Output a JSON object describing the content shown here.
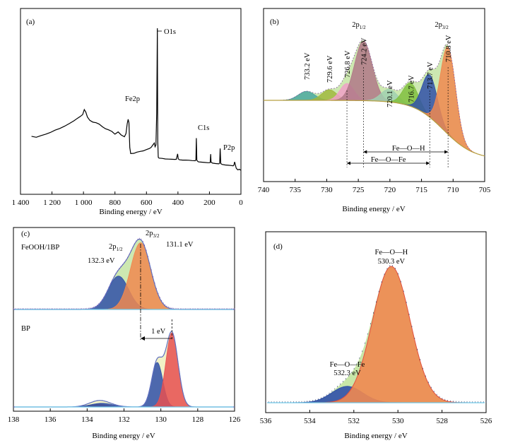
{
  "chart_data": [
    {
      "panel": "(a)",
      "type": "line",
      "xlabel": "Binding energy / eV",
      "xlim": [
        1400,
        0
      ],
      "xticks": [
        "1 400",
        "1 200",
        "1 000",
        "800",
        "600",
        "400",
        "200",
        "0"
      ],
      "xtick_values": [
        1400,
        1200,
        1000,
        800,
        600,
        400,
        200,
        0
      ],
      "annotations": [
        {
          "text": "O1s",
          "x": 531
        },
        {
          "text": "Fe2p",
          "x": 711
        },
        {
          "text": "C1s",
          "x": 285
        },
        {
          "text": "P2p",
          "x": 133
        }
      ],
      "series": [
        {
          "x": [
            1330,
            1300,
            1270,
            1240,
            1210,
            1180,
            1150,
            1120,
            1090,
            1060,
            1040,
            1020,
            1005,
            995,
            985,
            975,
            960,
            940,
            920,
            900,
            880,
            860,
            840,
            820,
            800,
            780,
            760,
            740,
            730,
            722,
            716,
            711,
            706,
            700,
            680,
            660,
            640,
            620,
            600,
            580,
            570,
            560,
            550,
            545,
            540,
            535,
            531,
            528,
            525,
            520,
            500,
            480,
            460,
            440,
            420,
            410,
            402,
            398,
            390,
            370,
            350,
            330,
            310,
            290,
            286,
            283,
            280,
            270,
            250,
            230,
            210,
            200,
            195,
            192,
            190,
            180,
            160,
            140,
            135,
            132,
            128,
            120,
            100,
            80,
            60,
            50,
            45,
            40,
            30,
            20,
            10,
            5,
            2
          ],
          "y": [
            0.243,
            0.236,
            0.248,
            0.258,
            0.27,
            0.286,
            0.298,
            0.314,
            0.332,
            0.352,
            0.368,
            0.382,
            0.395,
            0.43,
            0.412,
            0.378,
            0.355,
            0.342,
            0.338,
            0.328,
            0.31,
            0.296,
            0.288,
            0.277,
            0.258,
            0.274,
            0.252,
            0.24,
            0.262,
            0.332,
            0.362,
            0.338,
            0.164,
            0.122,
            0.124,
            0.132,
            0.137,
            0.141,
            0.15,
            0.158,
            0.166,
            0.181,
            0.196,
            0.17,
            0.182,
            0.408,
            1.0,
            0.208,
            0.096,
            0.09,
            0.088,
            0.084,
            0.083,
            0.082,
            0.081,
            0.082,
            0.12,
            0.085,
            0.078,
            0.076,
            0.076,
            0.075,
            0.073,
            0.072,
            0.08,
            0.23,
            0.074,
            0.064,
            0.062,
            0.06,
            0.058,
            0.058,
            0.06,
            0.118,
            0.062,
            0.055,
            0.052,
            0.05,
            0.055,
            0.158,
            0.052,
            0.046,
            0.042,
            0.04,
            0.038,
            0.036,
            0.04,
            0.064,
            0.02,
            0.008,
            0.012,
            0.008,
            0.006
          ]
        }
      ]
    },
    {
      "panel": "(b)",
      "type": "area",
      "xlabel": "Binding energy / eV",
      "xlim": [
        740,
        705
      ],
      "xticks": [
        "740",
        "735",
        "730",
        "725",
        "720",
        "715",
        "710",
        "705"
      ],
      "xtick_values": [
        740,
        735,
        730,
        725,
        720,
        715,
        710,
        705
      ],
      "peaks": [
        {
          "center": 733.2,
          "amp": 0.085,
          "sigma": 1.3,
          "color": "#4aa8a0",
          "label": "733.2 eV"
        },
        {
          "center": 729.6,
          "amp": 0.1,
          "sigma": 1.2,
          "color": "#a0b840",
          "label": "729.6 eV"
        },
        {
          "center": 726.8,
          "amp": 0.16,
          "sigma": 1.1,
          "color": "#f0a0c8",
          "label": "726.8 eV"
        },
        {
          "center": 724.2,
          "amp": 0.56,
          "sigma": 1.4,
          "color": "#b07888",
          "label": "724.2 eV"
        },
        {
          "center": 720.1,
          "amp": 0.12,
          "sigma": 1.3,
          "color": "#a0d0b0",
          "label": "720.1 eV"
        },
        {
          "center": 716.7,
          "amp": 0.22,
          "sigma": 1.2,
          "color": "#80c040",
          "label": "716.7 eV"
        },
        {
          "center": 713.7,
          "amp": 0.4,
          "sigma": 1.2,
          "color": "#3050a8",
          "label": "713.7 eV"
        },
        {
          "center": 710.8,
          "amp": 0.82,
          "sigma": 1.2,
          "color": "#f08850",
          "label": "710.8 eV"
        }
      ],
      "annotations": [
        {
          "text": "2p",
          "sub": "1/2",
          "x": 725.5
        },
        {
          "text": "2p",
          "sub": "3/2",
          "x": 712.5
        },
        {
          "text": "Fe—O—H"
        },
        {
          "text": "Fe—O—Fe"
        }
      ]
    },
    {
      "panel": "(c)",
      "type": "area",
      "xlabel": "Binding energy / eV",
      "xlim": [
        138,
        126
      ],
      "xticks": [
        "138",
        "136",
        "134",
        "132",
        "130",
        "128",
        "126"
      ],
      "xtick_values": [
        138,
        136,
        134,
        132,
        130,
        128,
        126
      ],
      "legend": [
        "FeOOH/1BP",
        "BP"
      ],
      "top_peaks": [
        {
          "center": 132.3,
          "amp": 0.45,
          "sigma": 0.55,
          "color": "#3050a8",
          "label": "132.3 eV"
        },
        {
          "center": 131.1,
          "amp": 0.9,
          "sigma": 0.55,
          "color": "#f08850",
          "label": "131.1 eV"
        }
      ],
      "bottom_peaks": [
        {
          "center": 133.4,
          "amp": 0.04,
          "sigma": 0.5,
          "color": "#a06040"
        },
        {
          "center": 133.2,
          "amp": 0.05,
          "sigma": 0.6,
          "color": "#3050a8"
        },
        {
          "center": 130.2,
          "amp": 0.6,
          "sigma": 0.3,
          "color": "#3050a8"
        },
        {
          "center": 129.4,
          "amp": 1.0,
          "sigma": 0.33,
          "color": "#e85050"
        }
      ],
      "annotations": [
        {
          "text": "2p",
          "sub": "1/2"
        },
        {
          "text": "2p",
          "sub": "3/2"
        },
        {
          "text": "1 eV"
        }
      ]
    },
    {
      "panel": "(d)",
      "type": "area",
      "xlabel": "Binding energy / eV",
      "xlim": [
        536,
        526
      ],
      "xticks": [
        "536",
        "534",
        "532",
        "530",
        "528",
        "526"
      ],
      "xtick_values": [
        536,
        534,
        532,
        530,
        528,
        526
      ],
      "peaks": [
        {
          "center": 532.3,
          "amp": 0.12,
          "sigma": 0.7,
          "color": "#3050a8",
          "label": "Fe—O—Fe",
          "value": "532.3 eV"
        },
        {
          "center": 530.3,
          "amp": 1.0,
          "sigma": 0.85,
          "color": "#f08850",
          "label": "Fe—O—H",
          "value": "530.3 eV"
        }
      ]
    }
  ]
}
